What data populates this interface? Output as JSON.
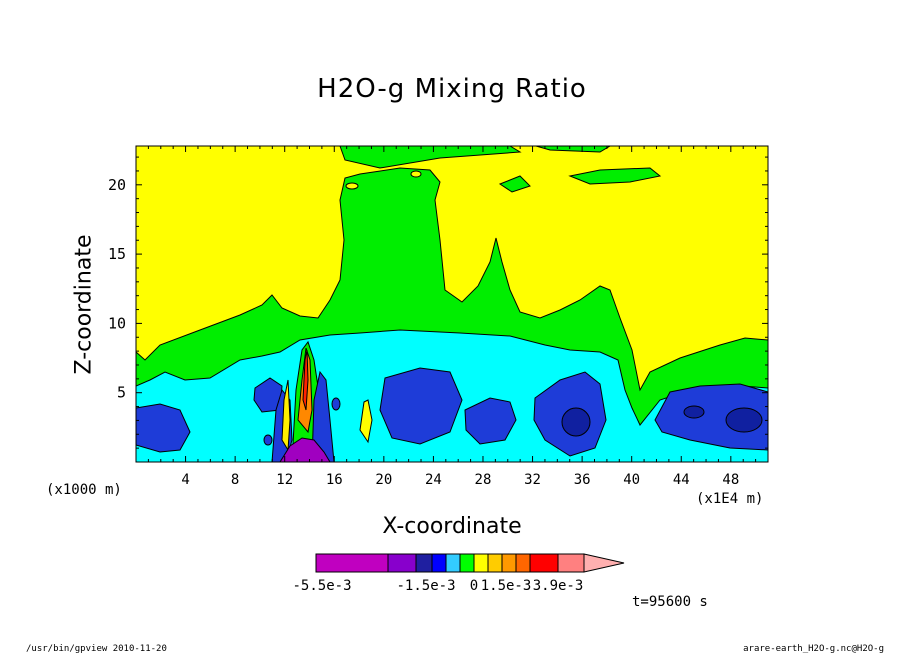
{
  "chart_data": {
    "type": "heatmap",
    "title": "H2O-g Mixing Ratio",
    "xlabel": "X-coordinate",
    "ylabel": "Z-coordinate",
    "x_unit": "(x1000 m)",
    "x_axis_note": "(x1E4 m)",
    "xlim": [
      0,
      51
    ],
    "ylim": [
      0,
      22.8
    ],
    "x_ticks": [
      4,
      8,
      12,
      16,
      20,
      24,
      28,
      32,
      36,
      40,
      44,
      48
    ],
    "y_ticks": [
      5,
      10,
      15,
      20
    ],
    "time_label": "t=95600 s",
    "colorbar": {
      "colors": [
        "#c000c0",
        "#8800cc",
        "#1f1fa0",
        "#0000ff",
        "#33ccff",
        "#00ff00",
        "#ffff00",
        "#ffcc00",
        "#ff9900",
        "#ff6600",
        "#ff0000",
        "#ff8080",
        "#ffb0b0"
      ],
      "labels": [
        "-5.5e-3",
        "-1.5e-3",
        "0",
        "1.5e-3",
        "3.9e-3"
      ]
    },
    "regions": [
      {
        "level": "yellow",
        "color": "#ffff00",
        "note": "background upper domain"
      },
      {
        "level": "green",
        "color": "#00ee00",
        "note": "mid-level band and plume"
      },
      {
        "level": "cyan",
        "color": "#00ffff",
        "note": "lower band"
      },
      {
        "level": "blue",
        "color": "#1e3cd8",
        "note": "low-level cells"
      },
      {
        "level": "dark-blue",
        "color": "#1020a0",
        "note": "cores"
      },
      {
        "level": "orange",
        "color": "#ff8800",
        "note": "plume near x=13"
      },
      {
        "level": "magenta",
        "color": "#a000c0",
        "note": "surface near x=14"
      }
    ]
  },
  "footer": {
    "left": "/usr/bin/gpview   2010-11-20",
    "right": "arare-earth_H2O-g.nc@H2O-g"
  }
}
